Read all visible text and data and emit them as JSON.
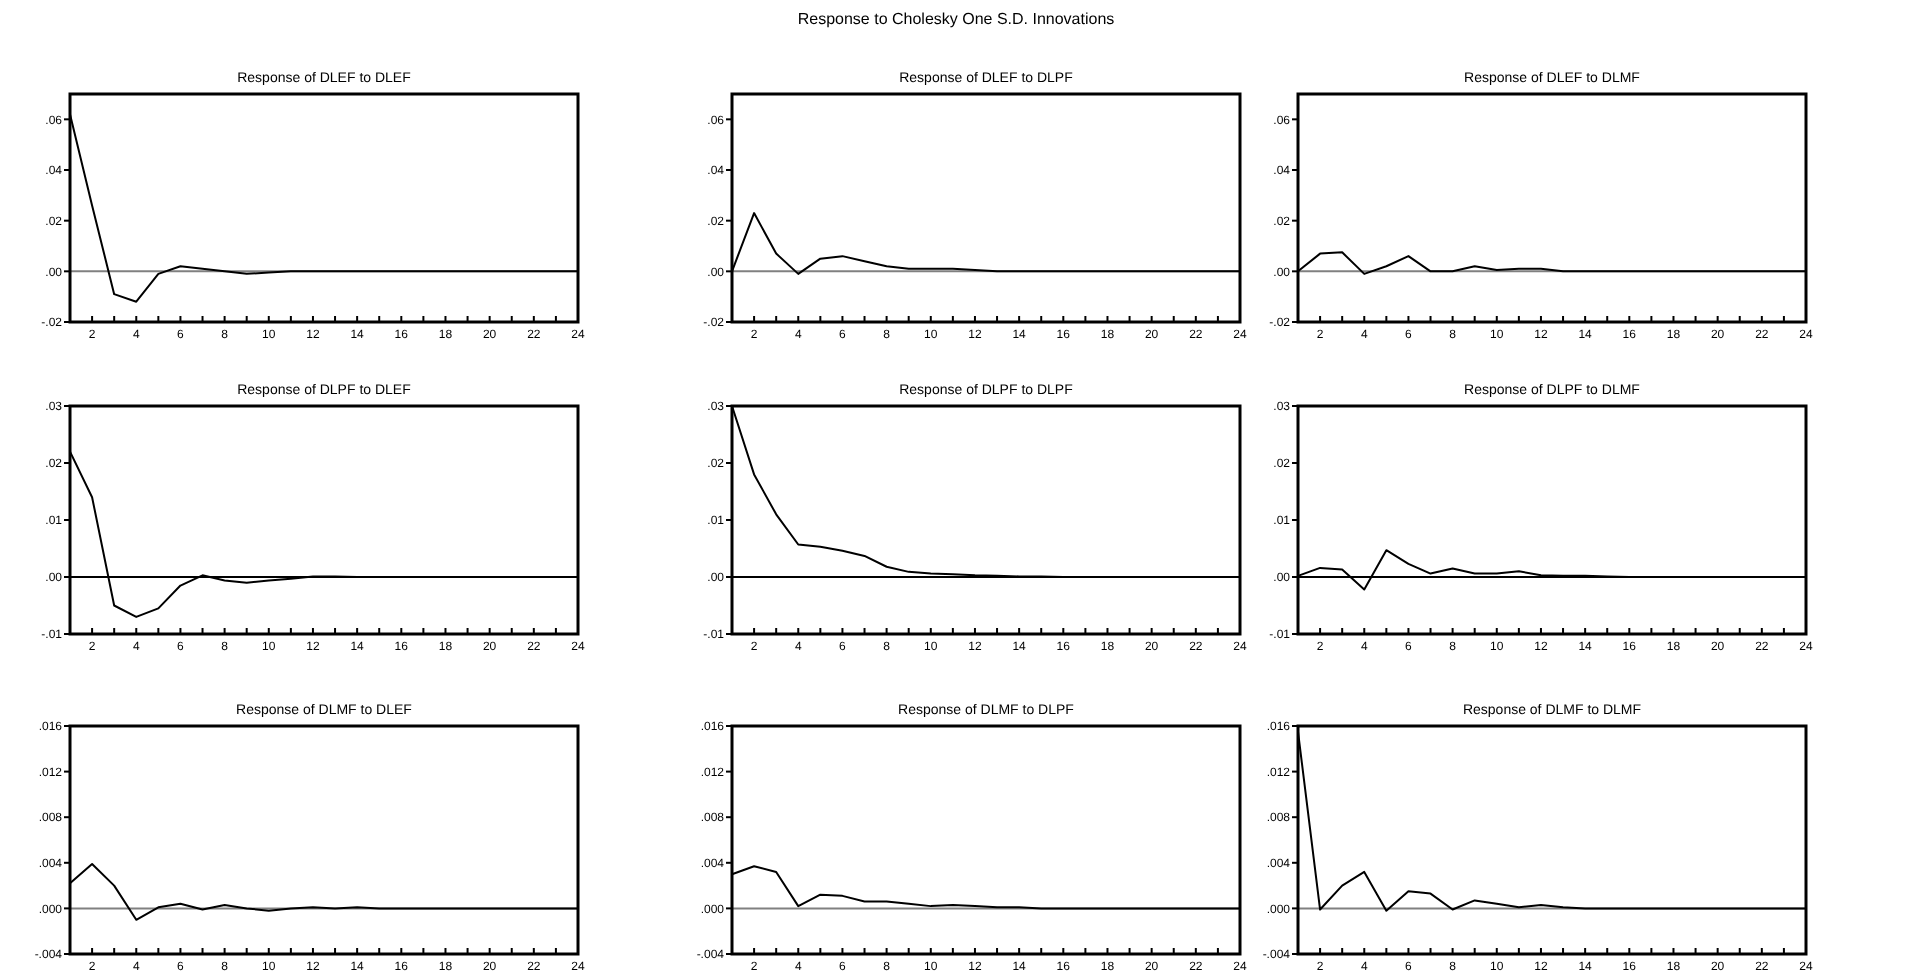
{
  "chart_data": [
    {
      "type": "line",
      "title": "Response of  DLEF to DLEF",
      "annotations": [
        "Response to Cholesky One S.D. Innovations"
      ],
      "color": "#000000",
      "x": [
        1,
        2,
        3,
        4,
        5,
        6,
        7,
        8,
        9,
        10,
        11,
        12,
        13,
        14,
        15,
        16,
        17,
        18,
        19,
        20,
        21,
        22,
        23,
        24
      ],
      "values": [
        0.062,
        0.026,
        -0.009,
        -0.012,
        -0.001,
        0.002,
        0.001,
        0,
        -0.001,
        -0.0005,
        0,
        0,
        0,
        0,
        0,
        0,
        0,
        0,
        0,
        0,
        0,
        0,
        0,
        0
      ],
      "xlim": [
        1,
        24
      ],
      "xticks": [
        {
          "value": 1,
          "label": null
        },
        2,
        {
          "value": 3,
          "label": null
        },
        4,
        {
          "value": 5,
          "label": null
        },
        6,
        {
          "value": 7,
          "label": null
        },
        8,
        {
          "value": 9,
          "label": null
        },
        10,
        {
          "value": 11,
          "label": null
        },
        12,
        {
          "value": 13,
          "label": null
        },
        14,
        {
          "value": 15,
          "label": null
        },
        16,
        {
          "value": 17,
          "label": null
        },
        18,
        {
          "value": 19,
          "label": null
        },
        20,
        {
          "value": 21,
          "label": null
        },
        22,
        {
          "value": 23,
          "label": null
        },
        24
      ],
      "ylim": [
        -0.02,
        0.07
      ],
      "yticks": [
        {
          "value": -0.02,
          "label": "-.02"
        },
        {
          "value": 0,
          "label": ".00"
        },
        {
          "value": 0.02,
          "label": ".02"
        },
        {
          "value": 0.04,
          "label": ".04"
        },
        {
          "value": 0.06,
          "label": ".06"
        }
      ],
      "ref_lines": [
        {
          "axis": "y",
          "value": 0,
          "color": "#808080"
        }
      ]
    },
    {
      "type": "line",
      "title": "Response of  DLEF to DLPF",
      "color": "#000000",
      "x": [
        1,
        2,
        3,
        4,
        5,
        6,
        7,
        8,
        9,
        10,
        11,
        12,
        13,
        14,
        15,
        16,
        17,
        18,
        19,
        20,
        21,
        22,
        23,
        24
      ],
      "values": [
        0,
        0.023,
        0.007,
        -0.001,
        0.005,
        0.006,
        0.004,
        0.002,
        0.001,
        0.001,
        0.001,
        0.0005,
        0,
        0,
        0,
        0,
        0,
        0,
        0,
        0,
        0,
        0,
        0,
        0
      ],
      "xlim": [
        1,
        24
      ],
      "xticks": [
        {
          "value": 1,
          "label": null
        },
        2,
        {
          "value": 3,
          "label": null
        },
        4,
        {
          "value": 5,
          "label": null
        },
        6,
        {
          "value": 7,
          "label": null
        },
        8,
        {
          "value": 9,
          "label": null
        },
        10,
        {
          "value": 11,
          "label": null
        },
        12,
        {
          "value": 13,
          "label": null
        },
        14,
        {
          "value": 15,
          "label": null
        },
        16,
        {
          "value": 17,
          "label": null
        },
        18,
        {
          "value": 19,
          "label": null
        },
        20,
        {
          "value": 21,
          "label": null
        },
        22,
        {
          "value": 23,
          "label": null
        },
        24
      ],
      "ylim": [
        -0.02,
        0.07
      ],
      "yticks": [
        {
          "value": -0.02,
          "label": "-.02"
        },
        {
          "value": 0,
          "label": ".00"
        },
        {
          "value": 0.02,
          "label": ".02"
        },
        {
          "value": 0.04,
          "label": ".04"
        },
        {
          "value": 0.06,
          "label": ".06"
        }
      ],
      "ref_lines": [
        {
          "axis": "y",
          "value": 0,
          "color": "#808080"
        }
      ]
    },
    {
      "type": "line",
      "title": "Response of  DLEF to DLMF",
      "color": "#000000",
      "x": [
        1,
        2,
        3,
        4,
        5,
        6,
        7,
        8,
        9,
        10,
        11,
        12,
        13,
        14,
        15,
        16,
        17,
        18,
        19,
        20,
        21,
        22,
        23,
        24
      ],
      "values": [
        0,
        0.007,
        0.0075,
        -0.001,
        0.002,
        0.006,
        0,
        0,
        0.002,
        0.0005,
        0.001,
        0.001,
        0,
        0,
        0,
        0,
        0,
        0,
        0,
        0,
        0,
        0,
        0,
        0
      ],
      "xlim": [
        1,
        24
      ],
      "xticks": [
        {
          "value": 1,
          "label": null
        },
        2,
        {
          "value": 3,
          "label": null
        },
        4,
        {
          "value": 5,
          "label": null
        },
        6,
        {
          "value": 7,
          "label": null
        },
        8,
        {
          "value": 9,
          "label": null
        },
        10,
        {
          "value": 11,
          "label": null
        },
        12,
        {
          "value": 13,
          "label": null
        },
        14,
        {
          "value": 15,
          "label": null
        },
        16,
        {
          "value": 17,
          "label": null
        },
        18,
        {
          "value": 19,
          "label": null
        },
        20,
        {
          "value": 21,
          "label": null
        },
        22,
        {
          "value": 23,
          "label": null
        },
        24
      ],
      "ylim": [
        -0.02,
        0.07
      ],
      "yticks": [
        {
          "value": -0.02,
          "label": "-.02"
        },
        {
          "value": 0,
          "label": ".00"
        },
        {
          "value": 0.02,
          "label": ".02"
        },
        {
          "value": 0.04,
          "label": ".04"
        },
        {
          "value": 0.06,
          "label": ".06"
        }
      ],
      "ref_lines": [
        {
          "axis": "y",
          "value": 0,
          "color": "#808080"
        }
      ]
    },
    {
      "type": "line",
      "title": "Response of  DLPF to DLEF",
      "color": "#000000",
      "x": [
        1,
        2,
        3,
        4,
        5,
        6,
        7,
        8,
        9,
        10,
        11,
        12,
        13,
        14,
        15,
        16,
        17,
        18,
        19,
        20,
        21,
        22,
        23,
        24
      ],
      "values": [
        0.022,
        0.014,
        -0.005,
        -0.007,
        -0.0055,
        -0.0015,
        0.0003,
        -0.0006,
        -0.001,
        -0.0006,
        -0.0003,
        0.0001,
        0.0001,
        0,
        0,
        0,
        0,
        0,
        0,
        0,
        0,
        0,
        0,
        0
      ],
      "xlim": [
        1,
        24
      ],
      "xticks": [
        {
          "value": 1,
          "label": null
        },
        2,
        {
          "value": 3,
          "label": null
        },
        4,
        {
          "value": 5,
          "label": null
        },
        6,
        {
          "value": 7,
          "label": null
        },
        8,
        {
          "value": 9,
          "label": null
        },
        10,
        {
          "value": 11,
          "label": null
        },
        12,
        {
          "value": 13,
          "label": null
        },
        14,
        {
          "value": 15,
          "label": null
        },
        16,
        {
          "value": 17,
          "label": null
        },
        18,
        {
          "value": 19,
          "label": null
        },
        20,
        {
          "value": 21,
          "label": null
        },
        22,
        {
          "value": 23,
          "label": null
        },
        24
      ],
      "ylim": [
        -0.01,
        0.03
      ],
      "yticks": [
        {
          "value": -0.01,
          "label": "-.01"
        },
        {
          "value": 0,
          "label": ".00"
        },
        {
          "value": 0.01,
          "label": ".01"
        },
        {
          "value": 0.02,
          "label": ".02"
        },
        {
          "value": 0.03,
          "label": ".03"
        }
      ],
      "ref_lines": [
        {
          "axis": "y",
          "value": 0,
          "color": "#000000"
        }
      ]
    },
    {
      "type": "line",
      "title": "Response of  DLPF to DLPF",
      "color": "#000000",
      "x": [
        1,
        2,
        3,
        4,
        5,
        6,
        7,
        8,
        9,
        10,
        11,
        12,
        13,
        14,
        15,
        16,
        17,
        18,
        19,
        20,
        21,
        22,
        23,
        24
      ],
      "values": [
        0.03,
        0.018,
        0.011,
        0.0057,
        0.0053,
        0.0046,
        0.0037,
        0.0018,
        0.0009,
        0.0006,
        0.0005,
        0.0003,
        0.0002,
        0.0001,
        0.0001,
        0,
        0,
        0,
        0,
        0,
        0,
        0,
        0,
        0
      ],
      "xlim": [
        1,
        24
      ],
      "xticks": [
        {
          "value": 1,
          "label": null
        },
        2,
        {
          "value": 3,
          "label": null
        },
        4,
        {
          "value": 5,
          "label": null
        },
        6,
        {
          "value": 7,
          "label": null
        },
        8,
        {
          "value": 9,
          "label": null
        },
        10,
        {
          "value": 11,
          "label": null
        },
        12,
        {
          "value": 13,
          "label": null
        },
        14,
        {
          "value": 15,
          "label": null
        },
        16,
        {
          "value": 17,
          "label": null
        },
        18,
        {
          "value": 19,
          "label": null
        },
        20,
        {
          "value": 21,
          "label": null
        },
        22,
        {
          "value": 23,
          "label": null
        },
        24
      ],
      "ylim": [
        -0.01,
        0.03
      ],
      "yticks": [
        {
          "value": -0.01,
          "label": "-.01"
        },
        {
          "value": 0,
          "label": ".00"
        },
        {
          "value": 0.01,
          "label": ".01"
        },
        {
          "value": 0.02,
          "label": ".02"
        },
        {
          "value": 0.03,
          "label": ".03"
        }
      ],
      "ref_lines": [
        {
          "axis": "y",
          "value": 0,
          "color": "#000000"
        }
      ]
    },
    {
      "type": "line",
      "title": "Response of  DLPF to DLMF",
      "color": "#000000",
      "x": [
        1,
        2,
        3,
        4,
        5,
        6,
        7,
        8,
        9,
        10,
        11,
        12,
        13,
        14,
        15,
        16,
        17,
        18,
        19,
        20,
        21,
        22,
        23,
        24
      ],
      "values": [
        0.0002,
        0.0016,
        0.0013,
        -0.0022,
        0.0047,
        0.0023,
        0.0006,
        0.0015,
        0.0006,
        0.0006,
        0.001,
        0.0003,
        0.0002,
        0.0002,
        0.0001,
        0,
        0,
        0,
        0,
        0,
        0,
        0,
        0,
        0
      ],
      "xlim": [
        1,
        24
      ],
      "xticks": [
        {
          "value": 1,
          "label": null
        },
        2,
        {
          "value": 3,
          "label": null
        },
        4,
        {
          "value": 5,
          "label": null
        },
        6,
        {
          "value": 7,
          "label": null
        },
        8,
        {
          "value": 9,
          "label": null
        },
        10,
        {
          "value": 11,
          "label": null
        },
        12,
        {
          "value": 13,
          "label": null
        },
        14,
        {
          "value": 15,
          "label": null
        },
        16,
        {
          "value": 17,
          "label": null
        },
        18,
        {
          "value": 19,
          "label": null
        },
        20,
        {
          "value": 21,
          "label": null
        },
        22,
        {
          "value": 23,
          "label": null
        },
        24
      ],
      "ylim": [
        -0.01,
        0.03
      ],
      "yticks": [
        {
          "value": -0.01,
          "label": "-.01"
        },
        {
          "value": 0,
          "label": ".00"
        },
        {
          "value": 0.01,
          "label": ".01"
        },
        {
          "value": 0.02,
          "label": ".02"
        },
        {
          "value": 0.03,
          "label": ".03"
        }
      ],
      "ref_lines": [
        {
          "axis": "y",
          "value": 0,
          "color": "#000000"
        }
      ]
    },
    {
      "type": "line",
      "title": "Response of  DLMF to DLEF",
      "color": "#000000",
      "x": [
        1,
        2,
        3,
        4,
        5,
        6,
        7,
        8,
        9,
        10,
        11,
        12,
        13,
        14,
        15,
        16,
        17,
        18,
        19,
        20,
        21,
        22,
        23,
        24
      ],
      "values": [
        0.0022,
        0.0039,
        0.002,
        -0.001,
        0.0001,
        0.0004,
        -0.0001,
        0.0003,
        0,
        -0.0002,
        0,
        0.0001,
        0,
        0.0001,
        0,
        0,
        0,
        0,
        0,
        0,
        0,
        0,
        0,
        0
      ],
      "xlim": [
        1,
        24
      ],
      "xticks": [
        {
          "value": 1,
          "label": null
        },
        2,
        {
          "value": 3,
          "label": null
        },
        4,
        {
          "value": 5,
          "label": null
        },
        6,
        {
          "value": 7,
          "label": null
        },
        8,
        {
          "value": 9,
          "label": null
        },
        10,
        {
          "value": 11,
          "label": null
        },
        12,
        {
          "value": 13,
          "label": null
        },
        14,
        {
          "value": 15,
          "label": null
        },
        16,
        {
          "value": 17,
          "label": null
        },
        18,
        {
          "value": 19,
          "label": null
        },
        20,
        {
          "value": 21,
          "label": null
        },
        22,
        {
          "value": 23,
          "label": null
        },
        24
      ],
      "ylim": [
        -0.004,
        0.016
      ],
      "yticks": [
        {
          "value": -0.004,
          "label": "-.004"
        },
        {
          "value": 0,
          "label": ".000"
        },
        {
          "value": 0.004,
          "label": ".004"
        },
        {
          "value": 0.008,
          "label": ".008"
        },
        {
          "value": 0.012,
          "label": ".012"
        },
        {
          "value": 0.016,
          "label": ".016"
        }
      ],
      "ref_lines": [
        {
          "axis": "y",
          "value": 0,
          "color": "#808080"
        }
      ]
    },
    {
      "type": "line",
      "title": "Response of  DLMF to DLPF",
      "color": "#000000",
      "x": [
        1,
        2,
        3,
        4,
        5,
        6,
        7,
        8,
        9,
        10,
        11,
        12,
        13,
        14,
        15,
        16,
        17,
        18,
        19,
        20,
        21,
        22,
        23,
        24
      ],
      "values": [
        0.003,
        0.0037,
        0.0032,
        0.0002,
        0.0012,
        0.0011,
        0.0006,
        0.0006,
        0.0004,
        0.0002,
        0.0003,
        0.0002,
        0.0001,
        0.0001,
        0,
        0,
        0,
        0,
        0,
        0,
        0,
        0,
        0,
        0
      ],
      "xlim": [
        1,
        24
      ],
      "xticks": [
        {
          "value": 1,
          "label": null
        },
        2,
        {
          "value": 3,
          "label": null
        },
        4,
        {
          "value": 5,
          "label": null
        },
        6,
        {
          "value": 7,
          "label": null
        },
        8,
        {
          "value": 9,
          "label": null
        },
        10,
        {
          "value": 11,
          "label": null
        },
        12,
        {
          "value": 13,
          "label": null
        },
        14,
        {
          "value": 15,
          "label": null
        },
        16,
        {
          "value": 17,
          "label": null
        },
        18,
        {
          "value": 19,
          "label": null
        },
        20,
        {
          "value": 21,
          "label": null
        },
        22,
        {
          "value": 23,
          "label": null
        },
        24
      ],
      "ylim": [
        -0.004,
        0.016
      ],
      "yticks": [
        {
          "value": -0.004,
          "label": "-.004"
        },
        {
          "value": 0,
          "label": ".000"
        },
        {
          "value": 0.004,
          "label": ".004"
        },
        {
          "value": 0.008,
          "label": ".008"
        },
        {
          "value": 0.012,
          "label": ".012"
        },
        {
          "value": 0.016,
          "label": ".016"
        }
      ],
      "ref_lines": [
        {
          "axis": "y",
          "value": 0,
          "color": "#808080"
        }
      ]
    },
    {
      "type": "line",
      "title": "Response of  DLMF to DLMF",
      "color": "#000000",
      "x": [
        1,
        2,
        3,
        4,
        5,
        6,
        7,
        8,
        9,
        10,
        11,
        12,
        13,
        14,
        15,
        16,
        17,
        18,
        19,
        20,
        21,
        22,
        23,
        24
      ],
      "values": [
        0.0155,
        -0.0001,
        0.002,
        0.0032,
        -0.0002,
        0.0015,
        0.0013,
        -0.0001,
        0.0007,
        0.0004,
        0.0001,
        0.0003,
        0.0001,
        0,
        0,
        0,
        0,
        0,
        0,
        0,
        0,
        0,
        0,
        0
      ],
      "xlim": [
        1,
        24
      ],
      "xticks": [
        {
          "value": 1,
          "label": null
        },
        2,
        {
          "value": 3,
          "label": null
        },
        4,
        {
          "value": 5,
          "label": null
        },
        6,
        {
          "value": 7,
          "label": null
        },
        8,
        {
          "value": 9,
          "label": null
        },
        10,
        {
          "value": 11,
          "label": null
        },
        12,
        {
          "value": 13,
          "label": null
        },
        14,
        {
          "value": 15,
          "label": null
        },
        16,
        {
          "value": 17,
          "label": null
        },
        18,
        {
          "value": 19,
          "label": null
        },
        20,
        {
          "value": 21,
          "label": null
        },
        22,
        {
          "value": 23,
          "label": null
        },
        24
      ],
      "ylim": [
        -0.004,
        0.016
      ],
      "yticks": [
        {
          "value": -0.004,
          "label": "-.004"
        },
        {
          "value": 0,
          "label": ".000"
        },
        {
          "value": 0.004,
          "label": ".004"
        },
        {
          "value": 0.008,
          "label": ".008"
        },
        {
          "value": 0.012,
          "label": ".012"
        },
        {
          "value": 0.016,
          "label": ".016"
        }
      ],
      "ref_lines": [
        {
          "axis": "y",
          "value": 0,
          "color": "#808080"
        }
      ]
    }
  ]
}
